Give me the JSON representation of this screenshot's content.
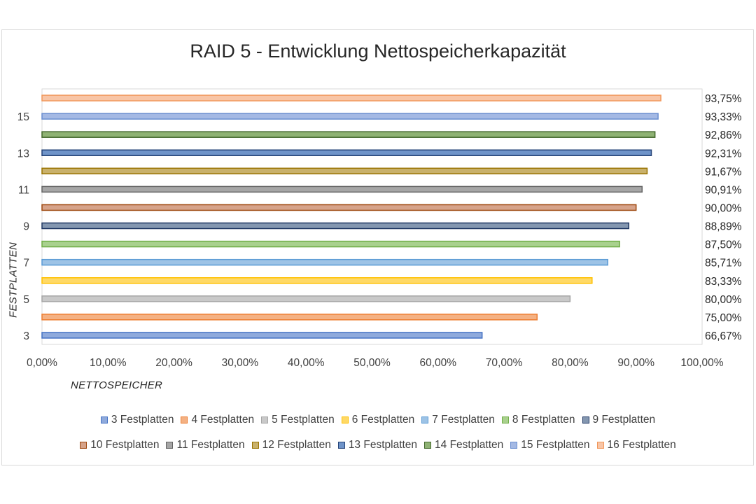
{
  "chart_data": {
    "type": "bar",
    "orientation": "horizontal",
    "title": "RAID 5 - Entwicklung Nettospeicherkapazität",
    "xlabel": "NETTOSPEICHER",
    "ylabel": "FESTPLATTEN",
    "xlim": [
      0,
      100
    ],
    "x_ticks": [
      "0,00%",
      "10,00%",
      "20,00%",
      "30,00%",
      "40,00%",
      "50,00%",
      "60,00%",
      "70,00%",
      "80,00%",
      "90,00%",
      "100,00%"
    ],
    "y_ticks": [
      "3",
      "5",
      "7",
      "9",
      "11",
      "13",
      "15"
    ],
    "legend_position": "bottom",
    "grid": false,
    "series": [
      {
        "name": "3 Festplatten",
        "disks": 3,
        "value": 66.67,
        "label": "66,67%",
        "fill": "#8faadc",
        "stroke": "#4472c4"
      },
      {
        "name": "4 Festplatten",
        "disks": 4,
        "value": 75.0,
        "label": "75,00%",
        "fill": "#f4b183",
        "stroke": "#ed7d31"
      },
      {
        "name": "5 Festplatten",
        "disks": 5,
        "value": 80.0,
        "label": "80,00%",
        "fill": "#c9c9c9",
        "stroke": "#a5a5a5"
      },
      {
        "name": "6 Festplatten",
        "disks": 6,
        "value": 83.33,
        "label": "83,33%",
        "fill": "#ffd966",
        "stroke": "#ffc000"
      },
      {
        "name": "7 Festplatten",
        "disks": 7,
        "value": 85.71,
        "label": "85,71%",
        "fill": "#9dc3e6",
        "stroke": "#5b9bd5"
      },
      {
        "name": "8 Festplatten",
        "disks": 8,
        "value": 87.5,
        "label": "87,50%",
        "fill": "#a9d18e",
        "stroke": "#70ad47"
      },
      {
        "name": "9 Festplatten",
        "disks": 9,
        "value": 88.89,
        "label": "88,89%",
        "fill": "#8497b0",
        "stroke": "#203864"
      },
      {
        "name": "10 Festplatten",
        "disks": 10,
        "value": 90.0,
        "label": "90,00%",
        "fill": "#d6a38a",
        "stroke": "#9e480e"
      },
      {
        "name": "11 Festplatten",
        "disks": 11,
        "value": 90.91,
        "label": "90,91%",
        "fill": "#a6a6a6",
        "stroke": "#636363"
      },
      {
        "name": "12 Festplatten",
        "disks": 12,
        "value": 91.67,
        "label": "91,67%",
        "fill": "#c9b16b",
        "stroke": "#997300"
      },
      {
        "name": "13 Festplatten",
        "disks": 13,
        "value": 92.31,
        "label": "92,31%",
        "fill": "#6f94c9",
        "stroke": "#264478"
      },
      {
        "name": "14 Festplatten",
        "disks": 14,
        "value": 92.86,
        "label": "92,86%",
        "fill": "#8fb274",
        "stroke": "#43682b"
      },
      {
        "name": "15 Festplatten",
        "disks": 15,
        "value": 93.33,
        "label": "93,33%",
        "fill": "#a4b9e4",
        "stroke": "#698ed0"
      },
      {
        "name": "16 Festplatten",
        "disks": 16,
        "value": 93.75,
        "label": "93,75%",
        "fill": "#f8c5a6",
        "stroke": "#f1975a"
      }
    ]
  }
}
